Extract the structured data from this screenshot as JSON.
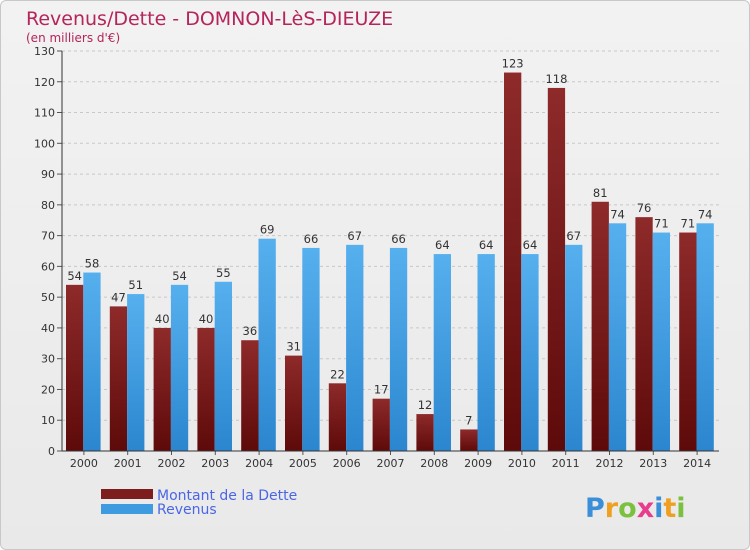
{
  "chart_data": {
    "type": "bar",
    "title": "Revenus/Dette - DOMNON-LèS-DIEUZE",
    "subtitle": "(en milliers d'€)",
    "categories": [
      "2000",
      "2001",
      "2002",
      "2003",
      "2004",
      "2005",
      "2006",
      "2007",
      "2008",
      "2009",
      "2010",
      "2011",
      "2012",
      "2013",
      "2014"
    ],
    "series": [
      {
        "name": "Montant de la Dette",
        "color": "#7d1d1d",
        "values": [
          54,
          47,
          40,
          40,
          36,
          31,
          22,
          17,
          12,
          7,
          123,
          118,
          81,
          76,
          71
        ]
      },
      {
        "name": "Revenus",
        "color": "#3f9be0",
        "values": [
          58,
          51,
          54,
          55,
          69,
          66,
          67,
          66,
          64,
          64,
          64,
          67,
          74,
          71,
          74
        ]
      }
    ],
    "yticks": [
      0,
      10,
      20,
      30,
      40,
      50,
      60,
      70,
      80,
      90,
      100,
      110,
      120,
      130
    ],
    "ylim": [
      0,
      130
    ],
    "grid": true,
    "legend_position": "bottom-left"
  },
  "brand": {
    "letters": [
      "P",
      "r",
      "o",
      "x",
      "i",
      "t",
      "i"
    ],
    "colors": [
      "#3a8fd8",
      "#f0a020",
      "#7cc040",
      "#e83c8c",
      "#3a8fd8",
      "#f0a020",
      "#7cc040"
    ]
  }
}
